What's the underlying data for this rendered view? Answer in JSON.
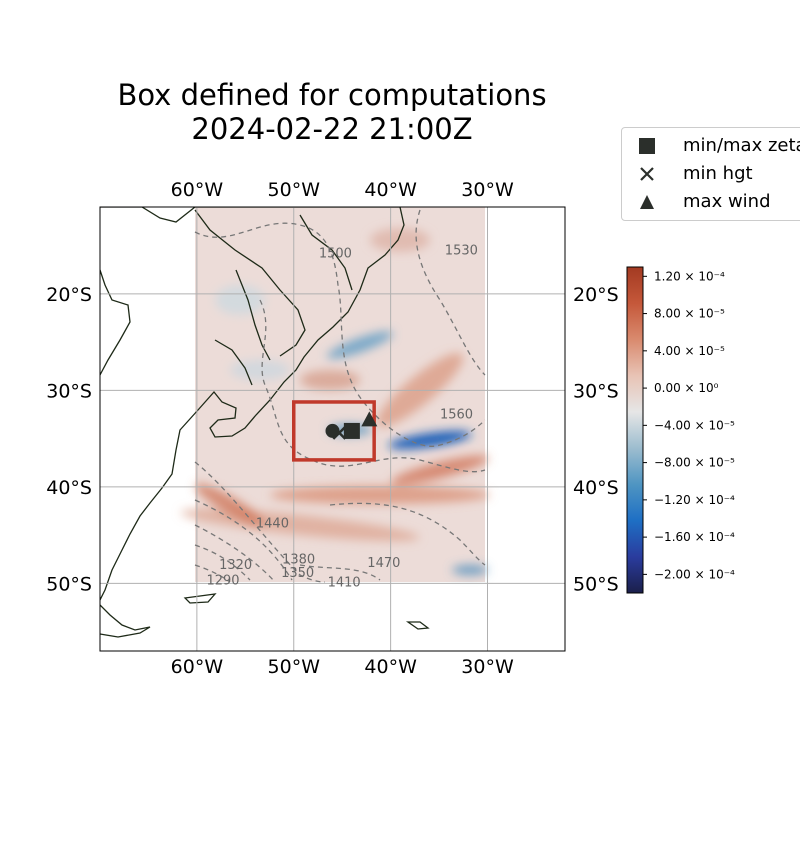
{
  "title_line1": "Box defined for computations",
  "title_line2": "2024-02-22 21:00Z",
  "legend": [
    {
      "marker": "square",
      "label": "min/max zeta"
    },
    {
      "marker": "x",
      "label": "min hgt"
    },
    {
      "marker": "triangle",
      "label": "max wind"
    }
  ],
  "axes": {
    "lon_ticks": [
      {
        "lon": -60,
        "label": "60°W"
      },
      {
        "lon": -50,
        "label": "50°W"
      },
      {
        "lon": -40,
        "label": "40°W"
      },
      {
        "lon": -30,
        "label": "30°W"
      }
    ],
    "lat_ticks": [
      {
        "lat": -20,
        "label": "20°S"
      },
      {
        "lat": -30,
        "label": "30°S"
      },
      {
        "lat": -40,
        "label": "40°S"
      },
      {
        "lat": -50,
        "label": "50°S"
      }
    ],
    "lon_range": [
      -70,
      -22
    ],
    "lat_range": [
      -57,
      -11
    ],
    "grid": true
  },
  "box": {
    "lon_min": -50,
    "lon_max": -41.7,
    "lat_min": -37.2,
    "lat_max": -31.2,
    "color": "#c0392b"
  },
  "markers": [
    {
      "type": "circle",
      "lon": -46.0,
      "lat": -34.2
    },
    {
      "type": "x",
      "lon": -45.3,
      "lat": -34.4
    },
    {
      "type": "square",
      "lon": -44.0,
      "lat": -34.2
    },
    {
      "type": "triangle",
      "lon": -42.2,
      "lat": -33.0
    }
  ],
  "contour_labels": [
    {
      "text": "1530",
      "lon": -32.7,
      "lat": -15.5
    },
    {
      "text": "1500",
      "lon": -45.7,
      "lat": -15.8
    },
    {
      "text": "1560",
      "lon": -33.2,
      "lat": -32.5
    },
    {
      "text": "1440",
      "lon": -52.2,
      "lat": -43.8
    },
    {
      "text": "1470",
      "lon": -40.7,
      "lat": -47.9
    },
    {
      "text": "1410",
      "lon": -44.8,
      "lat": -49.9
    },
    {
      "text": "1380",
      "lon": -49.5,
      "lat": -47.5
    },
    {
      "text": "1350",
      "lon": -49.6,
      "lat": -48.9
    },
    {
      "text": "1320",
      "lon": -56.0,
      "lat": -48.1
    },
    {
      "text": "1290",
      "lon": -57.3,
      "lat": -49.7
    }
  ],
  "colorbar": {
    "min": -0.00022,
    "max": 0.00013,
    "ticks": [
      {
        "value": 0.00012,
        "label": "1.20 × 10⁻⁴"
      },
      {
        "value": 8e-05,
        "label": "8.00 × 10⁻⁵"
      },
      {
        "value": 4e-05,
        "label": "4.00 × 10⁻⁵"
      },
      {
        "value": 0.0,
        "label": "0.00 × 10⁰"
      },
      {
        "value": -4e-05,
        "label": "−4.00 × 10⁻⁵"
      },
      {
        "value": -8e-05,
        "label": "−8.00 × 10⁻⁵"
      },
      {
        "value": -0.00012,
        "label": "−1.20 × 10⁻⁴"
      },
      {
        "value": -0.00016,
        "label": "−1.60 × 10⁻⁴"
      },
      {
        "value": -0.0002,
        "label": "−2.00 × 10⁻⁴"
      }
    ],
    "colors": [
      "#1b1f4a",
      "#2a3c9e",
      "#1e6fc4",
      "#4f95c2",
      "#9dbdcf",
      "#e6e6e6",
      "#e8c3b5",
      "#d98a6e",
      "#c5583a",
      "#a33a22"
    ]
  }
}
